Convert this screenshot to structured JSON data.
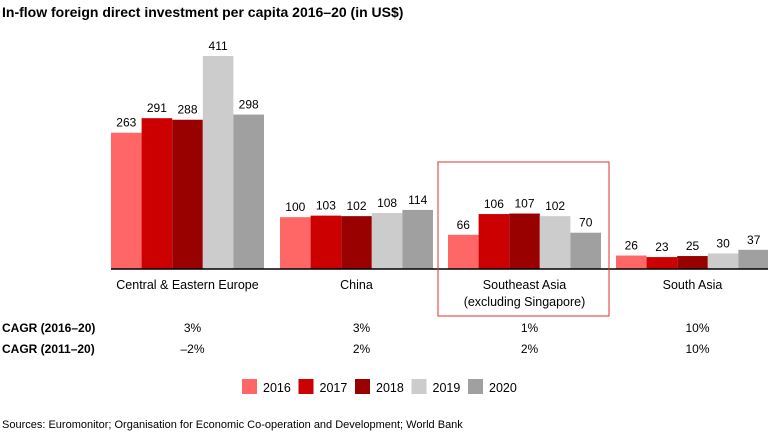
{
  "chart_data": {
    "type": "bar",
    "title": "In-flow foreign direct investment per capita 2016–20 (in US$)",
    "categories": [
      "Central & Eastern Europe",
      "China",
      "Southeast Asia\n(excluding Singapore)",
      "South Asia"
    ],
    "category_lines": [
      [
        "Central & Eastern Europe"
      ],
      [
        "China"
      ],
      [
        "Southeast Asia",
        "(excluding Singapore)"
      ],
      [
        "South Asia"
      ]
    ],
    "series": [
      {
        "name": "2016",
        "color": "#ff6666",
        "values": [
          263,
          100,
          66,
          26
        ]
      },
      {
        "name": "2017",
        "color": "#cc0000",
        "values": [
          291,
          103,
          106,
          23
        ]
      },
      {
        "name": "2018",
        "color": "#990000",
        "values": [
          288,
          102,
          107,
          25
        ]
      },
      {
        "name": "2019",
        "color": "#cccccc",
        "values": [
          411,
          108,
          102,
          30
        ]
      },
      {
        "name": "2020",
        "color": "#a0a0a0",
        "values": [
          298,
          114,
          70,
          37
        ]
      }
    ],
    "ylim": [
      0,
      411
    ],
    "grid": false,
    "highlighted_category": "Southeast Asia\n(excluding Singapore)",
    "highlight_color": "#e03030",
    "legend_placement": "bottom-right",
    "cagr_rows": [
      {
        "label": "CAGR (2016–20)",
        "values": [
          "3%",
          "3%",
          "1%",
          "10%"
        ]
      },
      {
        "label": "CAGR (2011–20)",
        "values": [
          "–2%",
          "2%",
          "2%",
          "10%"
        ]
      }
    ],
    "source": "Sources: Euromonitor; Organisation for Economic Co-operation and Development; World Bank"
  }
}
